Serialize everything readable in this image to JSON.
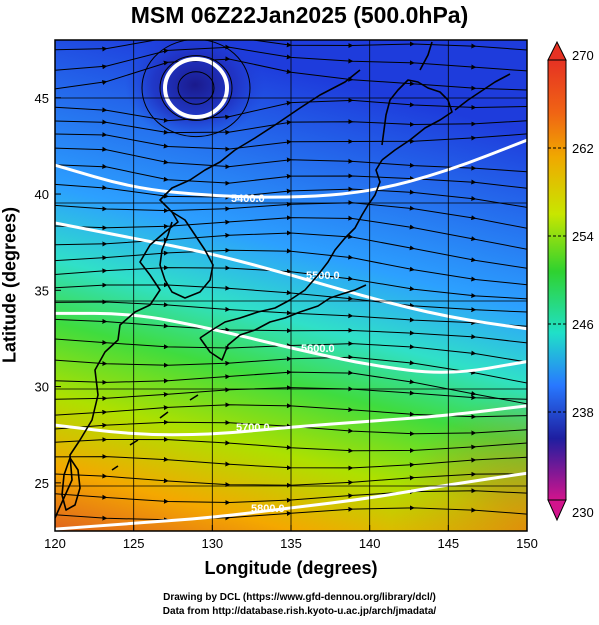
{
  "title": "MSM 06Z22Jan2025 (500.0hPa)",
  "map": {
    "xlabel": "Longitude (degrees)",
    "ylabel": "Latitude  (degrees)",
    "lon_range": [
      120,
      150
    ],
    "lat_range": [
      22.5,
      48
    ],
    "lon_ticks": [
      "120",
      "125",
      "130",
      "135",
      "140",
      "145",
      "150"
    ],
    "lat_ticks": [
      "25",
      "30",
      "35",
      "40",
      "45"
    ],
    "fill_field": "temperature (K)",
    "contour_field": "geopotential height (m)",
    "contours": [
      {
        "label": "5400.0",
        "lats": [
          41.5,
          40.3,
          39.9,
          39.8,
          40.1,
          41.2,
          42.8
        ]
      },
      {
        "label": "5500.0",
        "lats": [
          38.5,
          37.7,
          36.9,
          35.8,
          34.6,
          33.6,
          33.0
        ]
      },
      {
        "label": "5600.0",
        "lats": [
          33.8,
          33.8,
          33.0,
          32.0,
          31.1,
          30.6,
          31.3
        ]
      },
      {
        "label": "5700.0",
        "lats": [
          28.0,
          27.5,
          27.5,
          27.9,
          28.2,
          28.5,
          29.0
        ]
      },
      {
        "label": "5800.0",
        "lats": [
          22.6,
          22.9,
          23.2,
          23.7,
          24.2,
          24.9,
          25.5
        ]
      }
    ],
    "low_center": {
      "lon": 129,
      "lat": 45.8
    },
    "flow": "westerly wind streamlines",
    "gradient_colors": [
      "#e0641e",
      "#f4a800",
      "#aee000",
      "#3fdc3f",
      "#30e0c8",
      "#2ca0ff",
      "#1e3cdc"
    ]
  },
  "colorbar": {
    "ticks": [
      "270",
      "262",
      "254",
      "246",
      "238",
      "230"
    ],
    "range": [
      230,
      270
    ],
    "colors": [
      "#d2148c",
      "#1e1ea0",
      "#2878ff",
      "#20e0c8",
      "#2fd22f",
      "#c8e600",
      "#f0a800",
      "#f06414",
      "#e63223"
    ]
  },
  "credits": {
    "line1": "Drawing by DCL (https://www.gfd-dennou.org/library/dcl/)",
    "line2": "Data from http://database.rish.kyoto-u.ac.jp/arch/jmadata/"
  }
}
